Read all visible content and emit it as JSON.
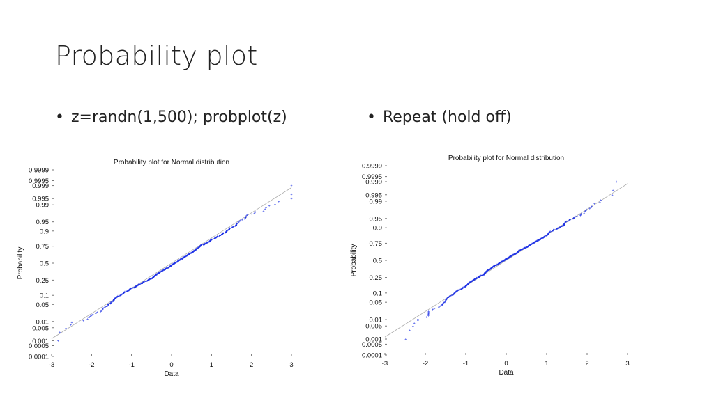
{
  "slide": {
    "title": "Probability plot",
    "bullets": [
      "z=randn(1,500); probplot(z)",
      "Repeat (hold off)"
    ]
  },
  "chart_data": [
    {
      "type": "scatter",
      "title": "Probability plot for Normal distribution",
      "xlabel": "Data",
      "ylabel": "Probability",
      "xlim": [
        -3,
        3
      ],
      "x_ticks": [
        -3,
        -2,
        -1,
        0,
        1,
        2,
        3
      ],
      "y_scale": "normal-probability",
      "y_ticks": [
        "0.0001",
        "0.0005",
        "0.001",
        "0.005",
        "0.01",
        "0.05",
        "0.1",
        "0.25",
        "0.5",
        "0.75",
        "0.9",
        "0.95",
        "0.99",
        "0.995",
        "0.999",
        "0.9995",
        "0.9999"
      ],
      "n_points": 500,
      "marker_color": "#1f33e6",
      "reference_line": {
        "from": [
          -3,
          0.0013
        ],
        "to": [
          3,
          0.9987
        ],
        "color": "#aaaaaa"
      },
      "seed": 7
    },
    {
      "type": "scatter",
      "title": "Probability plot for Normal distribution",
      "xlabel": "Data",
      "ylabel": "Probability",
      "xlim": [
        -3,
        3
      ],
      "x_ticks": [
        -3,
        -2,
        -1,
        0,
        1,
        2,
        3
      ],
      "y_scale": "normal-probability",
      "y_ticks": [
        "0.0001",
        "0.0005",
        "0.001",
        "0.005",
        "0.01",
        "0.05",
        "0.1",
        "0.25",
        "0.5",
        "0.75",
        "0.9",
        "0.95",
        "0.99",
        "0.995",
        "0.999",
        "0.9995",
        "0.9999"
      ],
      "n_points": 500,
      "marker_color": "#1f33e6",
      "reference_line": {
        "from": [
          -3,
          0.0013
        ],
        "to": [
          3,
          0.9987
        ],
        "color": "#aaaaaa"
      },
      "seed": 19
    }
  ]
}
